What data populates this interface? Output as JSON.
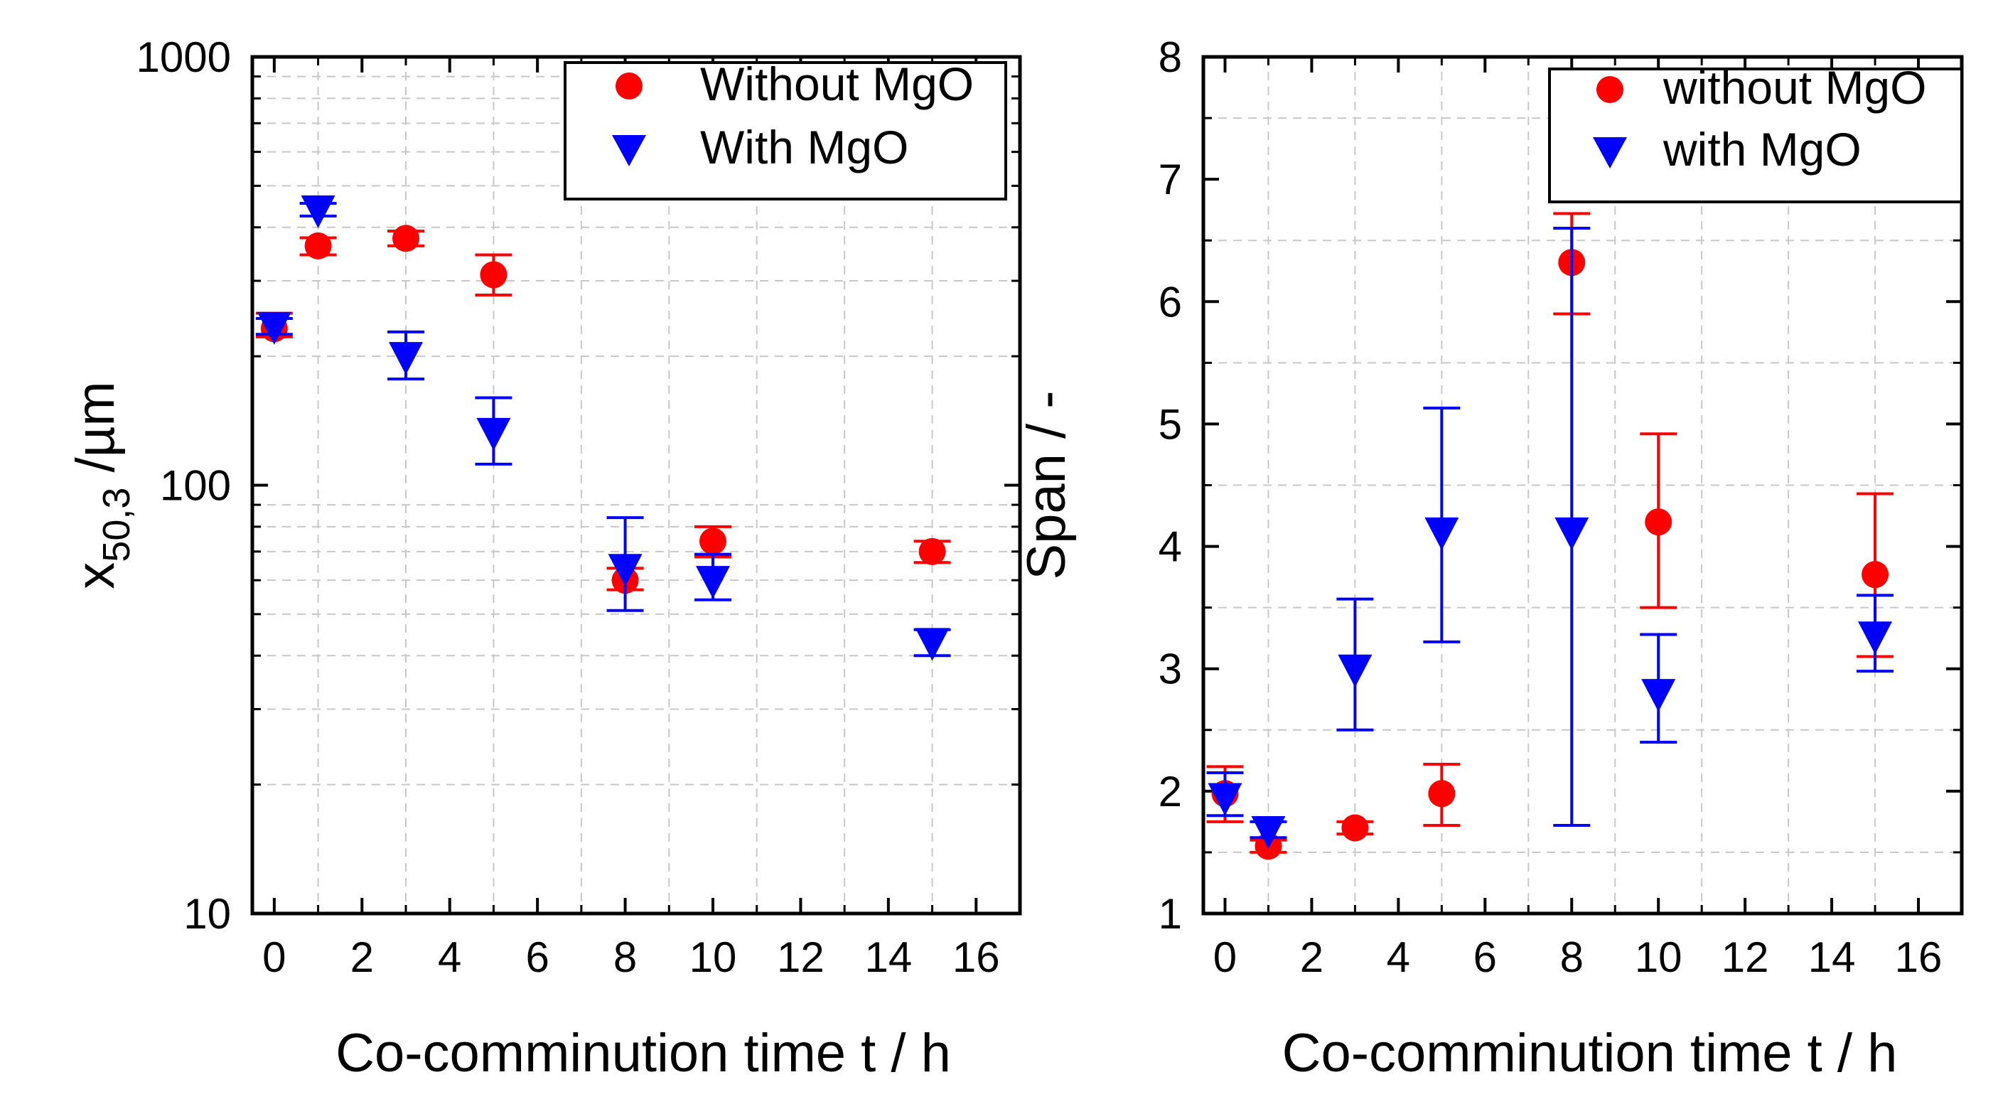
{
  "colors": {
    "without": "#ff0000",
    "with": "#0000ff"
  },
  "chart_data": [
    {
      "type": "scatter",
      "scale": "log",
      "xlabel": "Co-comminution time t / h",
      "ylabel": {
        "base": "x",
        "sub": "50,3",
        "rest": " /µm"
      },
      "xlim": [
        -0.5,
        17
      ],
      "ylim": [
        10,
        1000
      ],
      "x_ticks": [
        0,
        2,
        4,
        6,
        8,
        10,
        12,
        14,
        16
      ],
      "x_tick_labels": [
        "0",
        "2",
        "4",
        "6",
        "8",
        "10",
        "12",
        "14",
        "16"
      ],
      "y_ticks": [
        10,
        100,
        1000
      ],
      "y_tick_labels": [
        "10",
        "100",
        "1000"
      ],
      "legend_position": "top-right",
      "series": [
        {
          "name": "Without MgO",
          "marker": "circle",
          "color_key": "without",
          "x": [
            0,
            1,
            3,
            5,
            8,
            10,
            15
          ],
          "y": [
            232,
            362,
            377,
            310,
            60,
            74,
            70
          ],
          "err_lo": [
            222,
            345,
            362,
            278,
            57,
            68,
            66
          ],
          "err_hi": [
            252,
            378,
            392,
            345,
            64,
            80,
            74
          ]
        },
        {
          "name": "With MgO",
          "marker": "triangle-down",
          "color_key": "with",
          "x": [
            0,
            1,
            3,
            5,
            8,
            10,
            15
          ],
          "y": [
            235,
            440,
            200,
            133,
            64,
            60,
            43
          ],
          "err_lo": [
            225,
            425,
            177,
            112,
            51,
            54,
            40
          ],
          "err_hi": [
            245,
            455,
            228,
            160,
            84,
            69,
            46
          ]
        }
      ]
    },
    {
      "type": "scatter",
      "scale": "linear",
      "xlabel": "Co-comminution time t / h",
      "ylabel": "Span / -",
      "xlim": [
        -0.5,
        17
      ],
      "ylim": [
        1,
        8
      ],
      "x_ticks": [
        0,
        2,
        4,
        6,
        8,
        10,
        12,
        14,
        16
      ],
      "x_tick_labels": [
        "0",
        "2",
        "4",
        "6",
        "8",
        "10",
        "12",
        "14",
        "16"
      ],
      "y_ticks": [
        1,
        2,
        3,
        4,
        5,
        6,
        7,
        8
      ],
      "y_tick_labels": [
        "1",
        "2",
        "3",
        "4",
        "5",
        "6",
        "7",
        "8"
      ],
      "legend_position": "top-right",
      "series": [
        {
          "name": "without MgO",
          "marker": "circle",
          "color_key": "without",
          "x": [
            0,
            1,
            3,
            5,
            8,
            10,
            15
          ],
          "y": [
            1.98,
            1.55,
            1.7,
            1.98,
            6.32,
            4.2,
            3.77
          ],
          "err_lo": [
            1.75,
            1.5,
            1.65,
            1.72,
            5.9,
            3.5,
            3.1
          ],
          "err_hi": [
            2.2,
            1.6,
            1.75,
            2.22,
            6.72,
            4.92,
            4.43
          ]
        },
        {
          "name": "with MgO",
          "marker": "triangle-down",
          "color_key": "with",
          "x": [
            0,
            1,
            3,
            5,
            8,
            10,
            15
          ],
          "y": [
            1.95,
            1.68,
            3.0,
            4.12,
            4.12,
            2.8,
            3.27
          ],
          "err_lo": [
            1.8,
            1.62,
            2.5,
            3.22,
            1.72,
            2.4,
            2.98
          ],
          "err_hi": [
            2.15,
            1.75,
            3.57,
            5.13,
            6.6,
            3.28,
            3.6
          ]
        }
      ]
    }
  ]
}
